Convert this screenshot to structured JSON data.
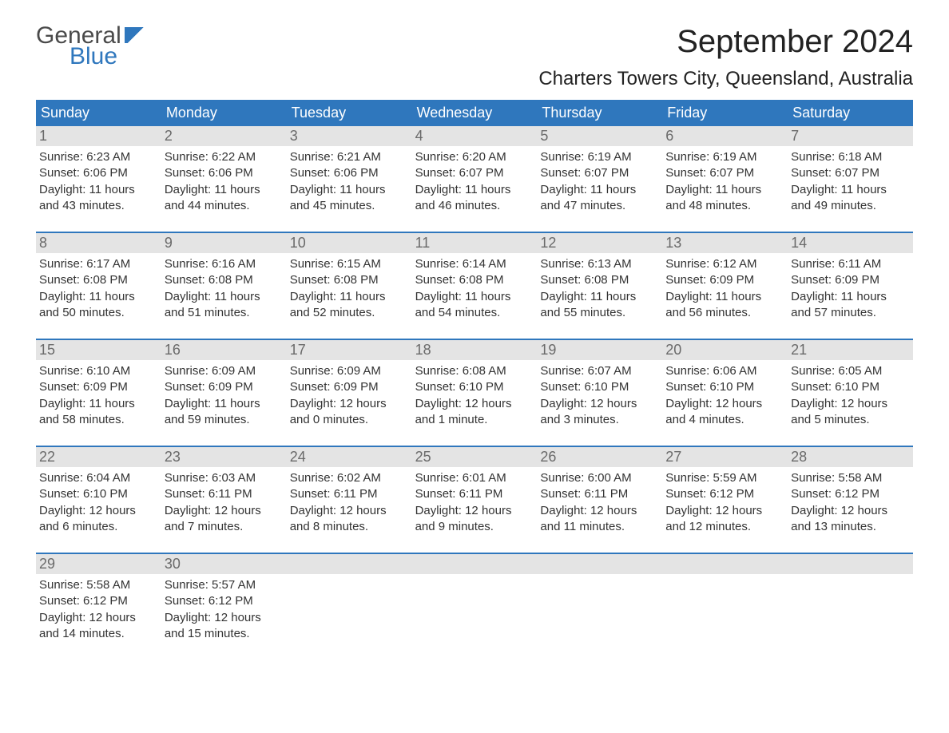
{
  "logo": {
    "line1": "General",
    "line2": "Blue"
  },
  "title": "September 2024",
  "location": "Charters Towers City, Queensland, Australia",
  "colors": {
    "header_bg": "#2f77bd",
    "header_text": "#ffffff",
    "daynum_bg": "#e4e4e4",
    "daynum_text": "#6a6a6a",
    "body_text": "#333333",
    "rule": "#2f77bd",
    "page_bg": "#ffffff"
  },
  "typography": {
    "title_fontsize": 40,
    "location_fontsize": 24,
    "weekday_fontsize": 18,
    "daynum_fontsize": 18,
    "body_fontsize": 15
  },
  "weekdays": [
    "Sunday",
    "Monday",
    "Tuesday",
    "Wednesday",
    "Thursday",
    "Friday",
    "Saturday"
  ],
  "weeks": [
    [
      {
        "n": "1",
        "sunrise": "Sunrise: 6:23 AM",
        "sunset": "Sunset: 6:06 PM",
        "daylight": "Daylight: 11 hours and 43 minutes."
      },
      {
        "n": "2",
        "sunrise": "Sunrise: 6:22 AM",
        "sunset": "Sunset: 6:06 PM",
        "daylight": "Daylight: 11 hours and 44 minutes."
      },
      {
        "n": "3",
        "sunrise": "Sunrise: 6:21 AM",
        "sunset": "Sunset: 6:06 PM",
        "daylight": "Daylight: 11 hours and 45 minutes."
      },
      {
        "n": "4",
        "sunrise": "Sunrise: 6:20 AM",
        "sunset": "Sunset: 6:07 PM",
        "daylight": "Daylight: 11 hours and 46 minutes."
      },
      {
        "n": "5",
        "sunrise": "Sunrise: 6:19 AM",
        "sunset": "Sunset: 6:07 PM",
        "daylight": "Daylight: 11 hours and 47 minutes."
      },
      {
        "n": "6",
        "sunrise": "Sunrise: 6:19 AM",
        "sunset": "Sunset: 6:07 PM",
        "daylight": "Daylight: 11 hours and 48 minutes."
      },
      {
        "n": "7",
        "sunrise": "Sunrise: 6:18 AM",
        "sunset": "Sunset: 6:07 PM",
        "daylight": "Daylight: 11 hours and 49 minutes."
      }
    ],
    [
      {
        "n": "8",
        "sunrise": "Sunrise: 6:17 AM",
        "sunset": "Sunset: 6:08 PM",
        "daylight": "Daylight: 11 hours and 50 minutes."
      },
      {
        "n": "9",
        "sunrise": "Sunrise: 6:16 AM",
        "sunset": "Sunset: 6:08 PM",
        "daylight": "Daylight: 11 hours and 51 minutes."
      },
      {
        "n": "10",
        "sunrise": "Sunrise: 6:15 AM",
        "sunset": "Sunset: 6:08 PM",
        "daylight": "Daylight: 11 hours and 52 minutes."
      },
      {
        "n": "11",
        "sunrise": "Sunrise: 6:14 AM",
        "sunset": "Sunset: 6:08 PM",
        "daylight": "Daylight: 11 hours and 54 minutes."
      },
      {
        "n": "12",
        "sunrise": "Sunrise: 6:13 AM",
        "sunset": "Sunset: 6:08 PM",
        "daylight": "Daylight: 11 hours and 55 minutes."
      },
      {
        "n": "13",
        "sunrise": "Sunrise: 6:12 AM",
        "sunset": "Sunset: 6:09 PM",
        "daylight": "Daylight: 11 hours and 56 minutes."
      },
      {
        "n": "14",
        "sunrise": "Sunrise: 6:11 AM",
        "sunset": "Sunset: 6:09 PM",
        "daylight": "Daylight: 11 hours and 57 minutes."
      }
    ],
    [
      {
        "n": "15",
        "sunrise": "Sunrise: 6:10 AM",
        "sunset": "Sunset: 6:09 PM",
        "daylight": "Daylight: 11 hours and 58 minutes."
      },
      {
        "n": "16",
        "sunrise": "Sunrise: 6:09 AM",
        "sunset": "Sunset: 6:09 PM",
        "daylight": "Daylight: 11 hours and 59 minutes."
      },
      {
        "n": "17",
        "sunrise": "Sunrise: 6:09 AM",
        "sunset": "Sunset: 6:09 PM",
        "daylight": "Daylight: 12 hours and 0 minutes."
      },
      {
        "n": "18",
        "sunrise": "Sunrise: 6:08 AM",
        "sunset": "Sunset: 6:10 PM",
        "daylight": "Daylight: 12 hours and 1 minute."
      },
      {
        "n": "19",
        "sunrise": "Sunrise: 6:07 AM",
        "sunset": "Sunset: 6:10 PM",
        "daylight": "Daylight: 12 hours and 3 minutes."
      },
      {
        "n": "20",
        "sunrise": "Sunrise: 6:06 AM",
        "sunset": "Sunset: 6:10 PM",
        "daylight": "Daylight: 12 hours and 4 minutes."
      },
      {
        "n": "21",
        "sunrise": "Sunrise: 6:05 AM",
        "sunset": "Sunset: 6:10 PM",
        "daylight": "Daylight: 12 hours and 5 minutes."
      }
    ],
    [
      {
        "n": "22",
        "sunrise": "Sunrise: 6:04 AM",
        "sunset": "Sunset: 6:10 PM",
        "daylight": "Daylight: 12 hours and 6 minutes."
      },
      {
        "n": "23",
        "sunrise": "Sunrise: 6:03 AM",
        "sunset": "Sunset: 6:11 PM",
        "daylight": "Daylight: 12 hours and 7 minutes."
      },
      {
        "n": "24",
        "sunrise": "Sunrise: 6:02 AM",
        "sunset": "Sunset: 6:11 PM",
        "daylight": "Daylight: 12 hours and 8 minutes."
      },
      {
        "n": "25",
        "sunrise": "Sunrise: 6:01 AM",
        "sunset": "Sunset: 6:11 PM",
        "daylight": "Daylight: 12 hours and 9 minutes."
      },
      {
        "n": "26",
        "sunrise": "Sunrise: 6:00 AM",
        "sunset": "Sunset: 6:11 PM",
        "daylight": "Daylight: 12 hours and 11 minutes."
      },
      {
        "n": "27",
        "sunrise": "Sunrise: 5:59 AM",
        "sunset": "Sunset: 6:12 PM",
        "daylight": "Daylight: 12 hours and 12 minutes."
      },
      {
        "n": "28",
        "sunrise": "Sunrise: 5:58 AM",
        "sunset": "Sunset: 6:12 PM",
        "daylight": "Daylight: 12 hours and 13 minutes."
      }
    ],
    [
      {
        "n": "29",
        "sunrise": "Sunrise: 5:58 AM",
        "sunset": "Sunset: 6:12 PM",
        "daylight": "Daylight: 12 hours and 14 minutes."
      },
      {
        "n": "30",
        "sunrise": "Sunrise: 5:57 AM",
        "sunset": "Sunset: 6:12 PM",
        "daylight": "Daylight: 12 hours and 15 minutes."
      },
      {
        "n": "",
        "sunrise": "",
        "sunset": "",
        "daylight": ""
      },
      {
        "n": "",
        "sunrise": "",
        "sunset": "",
        "daylight": ""
      },
      {
        "n": "",
        "sunrise": "",
        "sunset": "",
        "daylight": ""
      },
      {
        "n": "",
        "sunrise": "",
        "sunset": "",
        "daylight": ""
      },
      {
        "n": "",
        "sunrise": "",
        "sunset": "",
        "daylight": ""
      }
    ]
  ]
}
